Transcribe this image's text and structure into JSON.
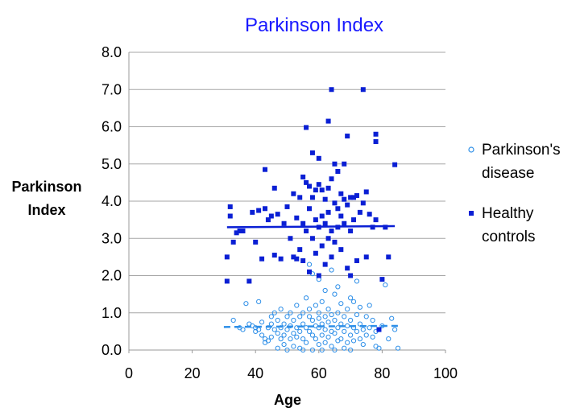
{
  "chart_data": {
    "type": "scatter",
    "title": "Parkinson Index",
    "xlabel": "Age",
    "ylabel": [
      "Parkinson",
      "Index"
    ],
    "xlim": [
      0,
      100
    ],
    "ylim": [
      0,
      8
    ],
    "x_ticks": [
      "0",
      "20",
      "40",
      "60",
      "80",
      "100"
    ],
    "y_ticks": [
      "0.0",
      "1.0",
      "2.0",
      "3.0",
      "4.0",
      "5.0",
      "6.0",
      "7.0",
      "8.0"
    ],
    "grid": "horizontal",
    "legend_position": "right",
    "colors": {
      "pd": "#2e8fe8",
      "hc": "#0a1fd4",
      "title": "#1a1aff"
    },
    "series": [
      {
        "name": "Parkinson's disease",
        "label_lines": [
          "Parkinson's",
          "disease"
        ],
        "marker": "open-circle",
        "trendline": {
          "style": "dashed",
          "x": [
            30,
            85
          ],
          "y": [
            0.62,
            0.65
          ]
        },
        "points": [
          [
            33,
            0.8
          ],
          [
            35,
            0.6
          ],
          [
            36,
            0.55
          ],
          [
            37,
            1.25
          ],
          [
            38,
            0.7
          ],
          [
            39,
            0.65
          ],
          [
            40,
            0.5
          ],
          [
            40,
            0.6
          ],
          [
            41,
            1.3
          ],
          [
            41,
            0.55
          ],
          [
            42,
            0.4
          ],
          [
            42,
            0.75
          ],
          [
            43,
            0.2
          ],
          [
            43,
            0.3
          ],
          [
            44,
            0.25
          ],
          [
            44,
            0.6
          ],
          [
            45,
            0.9
          ],
          [
            45,
            0.35
          ],
          [
            45,
            0.7
          ],
          [
            46,
            0.55
          ],
          [
            46,
            1.0
          ],
          [
            47,
            0.05
          ],
          [
            47,
            0.45
          ],
          [
            47,
            0.8
          ],
          [
            48,
            0.6
          ],
          [
            48,
            0.3
          ],
          [
            48,
            1.1
          ],
          [
            49,
            0.7
          ],
          [
            49,
            0.4
          ],
          [
            49,
            0.15
          ],
          [
            50,
            0.9
          ],
          [
            50,
            0.55
          ],
          [
            50,
            0.0
          ],
          [
            51,
            1.0
          ],
          [
            51,
            0.3
          ],
          [
            51,
            0.65
          ],
          [
            52,
            0.8
          ],
          [
            52,
            0.45
          ],
          [
            52,
            0.1
          ],
          [
            53,
            1.2
          ],
          [
            53,
            0.6
          ],
          [
            53,
            0.35
          ],
          [
            54,
            0.9
          ],
          [
            54,
            0.5
          ],
          [
            54,
            0.05
          ],
          [
            55,
            1.0
          ],
          [
            55,
            0.7
          ],
          [
            55,
            0.3
          ],
          [
            55,
            0.0
          ],
          [
            56,
            1.4
          ],
          [
            56,
            0.6
          ],
          [
            56,
            0.2
          ],
          [
            57,
            0.9
          ],
          [
            57,
            0.5
          ],
          [
            57,
            1.1
          ],
          [
            58,
            0.8
          ],
          [
            58,
            0.4
          ],
          [
            58,
            0.0
          ],
          [
            59,
            1.2
          ],
          [
            59,
            0.65
          ],
          [
            59,
            0.3
          ],
          [
            60,
            1.0
          ],
          [
            60,
            0.6
          ],
          [
            60,
            0.15
          ],
          [
            60,
            0.85
          ],
          [
            61,
            1.3
          ],
          [
            61,
            0.7
          ],
          [
            61,
            0.4
          ],
          [
            61,
            0.0
          ],
          [
            62,
            0.9
          ],
          [
            62,
            0.55
          ],
          [
            62,
            0.2
          ],
          [
            63,
            1.1
          ],
          [
            63,
            0.75
          ],
          [
            63,
            0.35
          ],
          [
            64,
            0.95
          ],
          [
            64,
            0.5
          ],
          [
            64,
            0.1
          ],
          [
            65,
            1.5
          ],
          [
            65,
            0.8
          ],
          [
            65,
            0.45
          ],
          [
            65,
            0.0
          ],
          [
            66,
            1.0
          ],
          [
            66,
            0.6
          ],
          [
            66,
            0.25
          ],
          [
            67,
            1.25
          ],
          [
            67,
            0.7
          ],
          [
            67,
            0.3
          ],
          [
            68,
            0.9
          ],
          [
            68,
            0.5
          ],
          [
            68,
            0.05
          ],
          [
            69,
            1.1
          ],
          [
            69,
            0.65
          ],
          [
            69,
            0.2
          ],
          [
            70,
            0.8
          ],
          [
            70,
            0.4
          ],
          [
            70,
            0.0
          ],
          [
            71,
            1.3
          ],
          [
            71,
            0.6
          ],
          [
            71,
            0.25
          ],
          [
            72,
            0.95
          ],
          [
            72,
            0.5
          ],
          [
            73,
            0.7
          ],
          [
            73,
            0.3
          ],
          [
            73,
            1.15
          ],
          [
            74,
            0.55
          ],
          [
            74,
            0.15
          ],
          [
            75,
            0.9
          ],
          [
            75,
            0.4
          ],
          [
            76,
            1.2
          ],
          [
            76,
            0.6
          ],
          [
            77,
            0.35
          ],
          [
            77,
            0.8
          ],
          [
            78,
            0.5
          ],
          [
            78,
            0.1
          ],
          [
            79,
            0.05
          ],
          [
            80,
            0.65
          ],
          [
            81,
            1.75
          ],
          [
            82,
            0.3
          ],
          [
            83,
            0.85
          ],
          [
            84,
            0.55
          ],
          [
            85,
            0.05
          ],
          [
            57,
            2.3
          ],
          [
            58,
            2.05
          ],
          [
            60,
            1.9
          ],
          [
            62,
            1.6
          ],
          [
            64,
            2.15
          ],
          [
            66,
            1.7
          ],
          [
            70,
            1.4
          ],
          [
            72,
            1.85
          ]
        ]
      },
      {
        "name": "Healthy controls",
        "label_lines": [
          "Healthy",
          "controls"
        ],
        "marker": "filled-square",
        "trendline": {
          "style": "solid",
          "x": [
            31,
            84
          ],
          "y": [
            3.3,
            3.33
          ]
        },
        "points": [
          [
            31,
            2.5
          ],
          [
            31,
            1.85
          ],
          [
            32,
            3.6
          ],
          [
            32,
            3.85
          ],
          [
            33,
            2.9
          ],
          [
            34,
            3.15
          ],
          [
            36,
            3.2
          ],
          [
            38,
            1.85
          ],
          [
            39,
            3.7
          ],
          [
            40,
            2.9
          ],
          [
            41,
            3.75
          ],
          [
            42,
            2.45
          ],
          [
            43,
            4.85
          ],
          [
            43,
            3.8
          ],
          [
            44,
            3.5
          ],
          [
            45,
            3.6
          ],
          [
            46,
            2.55
          ],
          [
            47,
            3.65
          ],
          [
            48,
            2.45
          ],
          [
            49,
            3.4
          ],
          [
            50,
            3.85
          ],
          [
            51,
            3.0
          ],
          [
            52,
            4.2
          ],
          [
            52,
            2.5
          ],
          [
            53,
            3.55
          ],
          [
            54,
            4.1
          ],
          [
            54,
            2.7
          ],
          [
            55,
            4.65
          ],
          [
            55,
            3.4
          ],
          [
            55,
            2.4
          ],
          [
            56,
            5.98
          ],
          [
            56,
            4.5
          ],
          [
            56,
            3.2
          ],
          [
            57,
            4.4
          ],
          [
            57,
            3.8
          ],
          [
            57,
            2.1
          ],
          [
            58,
            5.3
          ],
          [
            58,
            4.1
          ],
          [
            58,
            3.0
          ],
          [
            59,
            4.3
          ],
          [
            59,
            3.5
          ],
          [
            59,
            2.6
          ],
          [
            60,
            5.15
          ],
          [
            60,
            4.45
          ],
          [
            60,
            3.3
          ],
          [
            60,
            2.0
          ],
          [
            61,
            4.3
          ],
          [
            61,
            3.6
          ],
          [
            61,
            2.8
          ],
          [
            62,
            4.05
          ],
          [
            62,
            3.4
          ],
          [
            62,
            2.3
          ],
          [
            63,
            6.15
          ],
          [
            63,
            4.35
          ],
          [
            63,
            3.7
          ],
          [
            63,
            3.0
          ],
          [
            64,
            7.0
          ],
          [
            64,
            4.6
          ],
          [
            64,
            3.2
          ],
          [
            64,
            2.5
          ],
          [
            65,
            5.0
          ],
          [
            65,
            3.95
          ],
          [
            65,
            2.9
          ],
          [
            66,
            4.8
          ],
          [
            66,
            3.8
          ],
          [
            66,
            3.3
          ],
          [
            67,
            4.2
          ],
          [
            67,
            3.6
          ],
          [
            67,
            2.7
          ],
          [
            68,
            5.0
          ],
          [
            68,
            4.05
          ],
          [
            68,
            3.4
          ],
          [
            69,
            5.75
          ],
          [
            69,
            3.9
          ],
          [
            69,
            2.2
          ],
          [
            70,
            4.1
          ],
          [
            70,
            3.2
          ],
          [
            70,
            2.0
          ],
          [
            71,
            4.1
          ],
          [
            71,
            3.5
          ],
          [
            72,
            4.15
          ],
          [
            72,
            2.4
          ],
          [
            73,
            3.7
          ],
          [
            74,
            7.0
          ],
          [
            74,
            3.95
          ],
          [
            75,
            4.25
          ],
          [
            75,
            2.5
          ],
          [
            76,
            3.65
          ],
          [
            77,
            3.3
          ],
          [
            78,
            5.8
          ],
          [
            78,
            5.6
          ],
          [
            78,
            3.5
          ],
          [
            79,
            0.55
          ],
          [
            80,
            1.9
          ],
          [
            81,
            3.3
          ],
          [
            82,
            2.5
          ],
          [
            84,
            4.98
          ],
          [
            35,
            3.2
          ],
          [
            46,
            4.35
          ],
          [
            53,
            2.45
          ]
        ]
      }
    ]
  }
}
